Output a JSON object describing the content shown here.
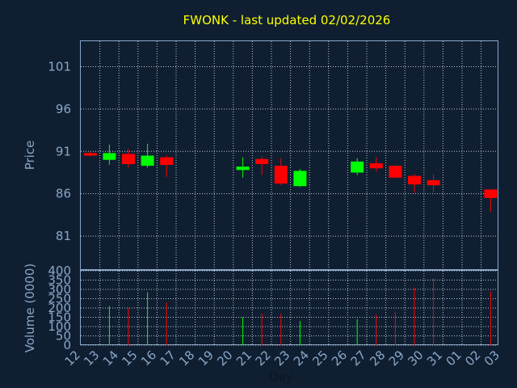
{
  "chart_data": {
    "type": "candlestick",
    "title": "FWONK - last updated 02/02/2026",
    "xlabel": "Day",
    "price_panel": {
      "ylabel": "Price",
      "yticks": [
        81,
        86,
        91,
        96,
        101
      ],
      "ylim": [
        77,
        104
      ]
    },
    "volume_panel": {
      "ylabel": "Volume (0000)",
      "yticks": [
        0,
        50,
        100,
        150,
        200,
        250,
        300,
        350,
        400
      ],
      "ylim": [
        0,
        400
      ]
    },
    "x_ticks": [
      "12",
      "13",
      "14",
      "15",
      "16",
      "17",
      "18",
      "19",
      "20",
      "21",
      "22",
      "23",
      "24",
      "25",
      "26",
      "27",
      "28",
      "29",
      "30",
      "31",
      "01",
      "02",
      "03"
    ],
    "candles": [
      {
        "day": "12",
        "open": 90.8,
        "high": 91.0,
        "low": 90.4,
        "close": 90.5,
        "volume": 0
      },
      {
        "day": "13",
        "open": 90.0,
        "high": 91.8,
        "low": 89.4,
        "close": 90.8,
        "volume": 210
      },
      {
        "day": "14",
        "open": 90.7,
        "high": 91.3,
        "low": 89.1,
        "close": 89.5,
        "volume": 200
      },
      {
        "day": "15",
        "open": 89.3,
        "high": 91.9,
        "low": 89.1,
        "close": 90.5,
        "volume": 285
      },
      {
        "day": "16",
        "open": 90.3,
        "high": 90.5,
        "low": 88.0,
        "close": 89.4,
        "volume": 230
      },
      {
        "day": "20",
        "open": 88.8,
        "high": 90.3,
        "low": 87.9,
        "close": 89.2,
        "volume": 150
      },
      {
        "day": "21",
        "open": 90.1,
        "high": 90.4,
        "low": 88.2,
        "close": 89.5,
        "volume": 170
      },
      {
        "day": "22",
        "open": 89.3,
        "high": 90.2,
        "low": 87.0,
        "close": 87.2,
        "volume": 170
      },
      {
        "day": "23",
        "open": 86.9,
        "high": 88.9,
        "low": 86.8,
        "close": 88.7,
        "volume": 130
      },
      {
        "day": "26",
        "open": 88.5,
        "high": 90.2,
        "low": 88.2,
        "close": 89.8,
        "volume": 140
      },
      {
        "day": "27",
        "open": 89.6,
        "high": 90.3,
        "low": 88.6,
        "close": 89.0,
        "volume": 165
      },
      {
        "day": "28",
        "open": 89.3,
        "high": 89.4,
        "low": 87.9,
        "close": 87.9,
        "volume": 180
      },
      {
        "day": "29",
        "open": 88.1,
        "high": 88.3,
        "low": 86.1,
        "close": 87.1,
        "volume": 310
      },
      {
        "day": "30",
        "open": 87.6,
        "high": 88.3,
        "low": 86.2,
        "close": 87.0,
        "volume": 360
      },
      {
        "day": "02",
        "open": 86.5,
        "high": 86.5,
        "low": 83.9,
        "close": 85.5,
        "volume": 290
      }
    ],
    "colors": {
      "up": "#00ff00",
      "down": "#ff0000",
      "background": "#0f1f31",
      "title": "#ffff00",
      "axis_text": "#8aa6c8"
    },
    "grid": true
  }
}
